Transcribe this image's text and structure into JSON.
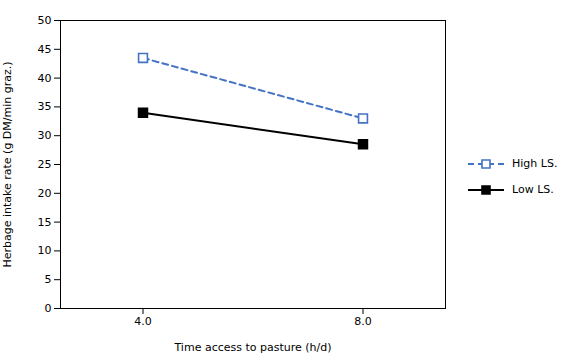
{
  "chart_data": {
    "type": "line",
    "xlabel": "Time access to pasture (h/d)",
    "ylabel": "Herbage intake rate (g DM/min graz.)",
    "x": [
      4,
      8
    ],
    "series": [
      {
        "name": "High LS.",
        "color": "#4472C4",
        "values": [
          43.5,
          33.0
        ],
        "line_style": "dashed",
        "marker": "square_open"
      },
      {
        "name": "Low LS.",
        "color": "#000000",
        "values": [
          34.0,
          28.5
        ],
        "line_style": "solid",
        "marker": "square"
      }
    ],
    "xlim": [
      2.5,
      9.5
    ],
    "xticks": [
      4,
      8
    ],
    "ylim": [
      0,
      50
    ],
    "yticks": [
      0,
      5,
      10,
      15,
      20,
      25,
      30,
      35,
      40,
      45,
      50
    ],
    "grid": false,
    "legend": "right"
  }
}
